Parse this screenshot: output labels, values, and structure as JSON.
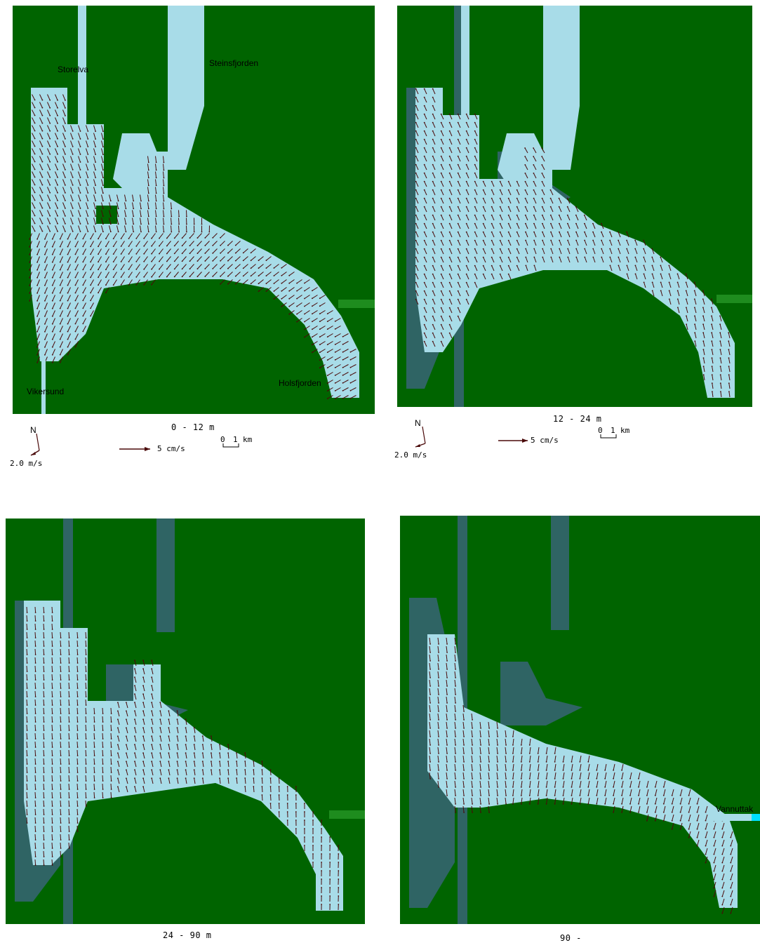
{
  "colors": {
    "land": "#006400",
    "water": "#a8dce8",
    "inactive_water": "#2f6464",
    "vectors": "#4a0a0a",
    "inflow": "#1e8c1e",
    "outflow": "#00e0ff"
  },
  "panels": [
    {
      "depth_label": "0 - 12 m",
      "place_labels": {
        "storelva": "Storelva",
        "steinsfjorden": "Steinsfjorden",
        "vikersund": "Vikersund",
        "holsfjorden": "Holsfjorden"
      },
      "legend": {
        "north": "N",
        "wind": "2.0 m/s",
        "current_scale": "5 cm/s",
        "distance_scale_zero": "0",
        "distance_scale_value": "1",
        "distance_scale_unit": "km"
      }
    },
    {
      "depth_label": "12 - 24 m",
      "legend": {
        "north": "N",
        "wind": "2.0 m/s",
        "current_scale": "5 cm/s",
        "distance_scale_zero": "0",
        "distance_scale_value": "1",
        "distance_scale_unit": "km"
      }
    },
    {
      "depth_label": "24 - 90 m"
    },
    {
      "depth_label": "90 -",
      "place_labels": {
        "vannuttak": "Vannuttak"
      }
    }
  ]
}
